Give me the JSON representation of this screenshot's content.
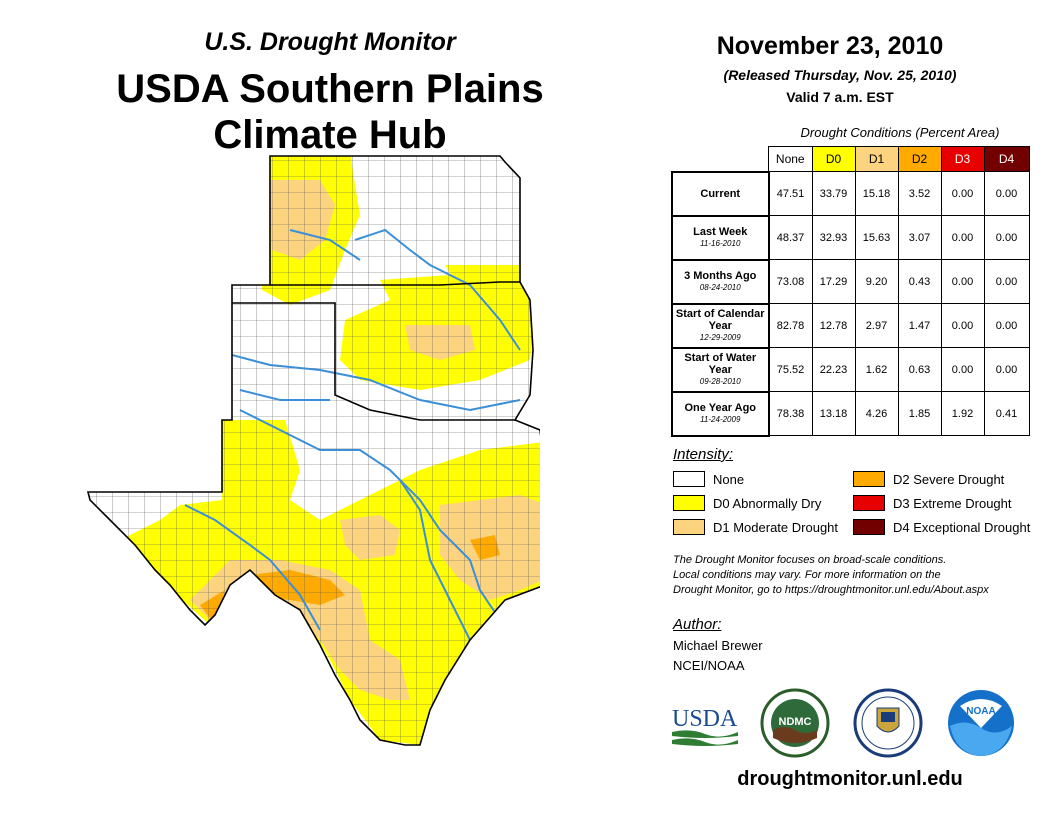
{
  "header": {
    "supertitle": "U.S. Drought Monitor",
    "title_line1": "USDA Southern Plains",
    "title_line2": "Climate Hub"
  },
  "info": {
    "date": "November 23, 2010",
    "released": "(Released Thursday, Nov. 25, 2010)",
    "valid": "Valid 7 a.m. EST"
  },
  "table": {
    "caption": "Drought Conditions (Percent Area)",
    "columns": [
      {
        "label": "None",
        "color": "#ffffff",
        "text_color": "#000000"
      },
      {
        "label": "D0",
        "color": "#ffff00",
        "text_color": "#000000"
      },
      {
        "label": "D1",
        "color": "#fcd37f",
        "text_color": "#000000"
      },
      {
        "label": "D2",
        "color": "#ffaa00",
        "text_color": "#000000"
      },
      {
        "label": "D3",
        "color": "#e60000",
        "text_color": "#ffffff"
      },
      {
        "label": "D4",
        "color": "#730000",
        "text_color": "#ffffff"
      }
    ],
    "rows": [
      {
        "label": "Current",
        "sublabel": "",
        "values": [
          "47.51",
          "33.79",
          "15.18",
          "3.52",
          "0.00",
          "0.00"
        ]
      },
      {
        "label": "Last Week",
        "sublabel": "11-16-2010",
        "values": [
          "48.37",
          "32.93",
          "15.63",
          "3.07",
          "0.00",
          "0.00"
        ]
      },
      {
        "label": "3 Months Ago",
        "sublabel": "08-24-2010",
        "values": [
          "73.08",
          "17.29",
          "9.20",
          "0.43",
          "0.00",
          "0.00"
        ]
      },
      {
        "label": "Start of Calendar Year",
        "sublabel": "12-29-2009",
        "values": [
          "82.78",
          "12.78",
          "2.97",
          "1.47",
          "0.00",
          "0.00"
        ]
      },
      {
        "label": "Start of Water Year",
        "sublabel": "09-28-2010",
        "values": [
          "75.52",
          "22.23",
          "1.62",
          "0.63",
          "0.00",
          "0.00"
        ]
      },
      {
        "label": "One Year Ago",
        "sublabel": "11-24-2009",
        "values": [
          "78.38",
          "13.18",
          "4.26",
          "1.85",
          "1.92",
          "0.41"
        ]
      }
    ]
  },
  "legend": {
    "title": "Intensity:",
    "items": [
      {
        "label": "None",
        "color": "#ffffff"
      },
      {
        "label": "D0 Abnormally Dry",
        "color": "#ffff00"
      },
      {
        "label": "D1 Moderate Drought",
        "color": "#fcd37f"
      },
      {
        "label": "D2 Severe Drought",
        "color": "#ffaa00"
      },
      {
        "label": "D3 Extreme Drought",
        "color": "#e60000"
      },
      {
        "label": "D4 Exceptional Drought",
        "color": "#730000"
      }
    ]
  },
  "note": {
    "line1": "The Drought Monitor focuses on broad-scale conditions.",
    "line2": "Local conditions may vary. For more information on the",
    "line3": "Drought Monitor, go to https://droughtmonitor.unl.edu/About.aspx"
  },
  "author": {
    "title": "Author:",
    "name": "Michael Brewer",
    "org": "NCEI/NOAA"
  },
  "logos": {
    "usda": "USDA",
    "ndmc": "NDMC",
    "noaa": "NOAA"
  },
  "footer": {
    "site": "droughtmonitor.unl.edu"
  },
  "colors": {
    "river": "#3a8fd8",
    "county_line": "#555555",
    "state_line": "#000000"
  }
}
